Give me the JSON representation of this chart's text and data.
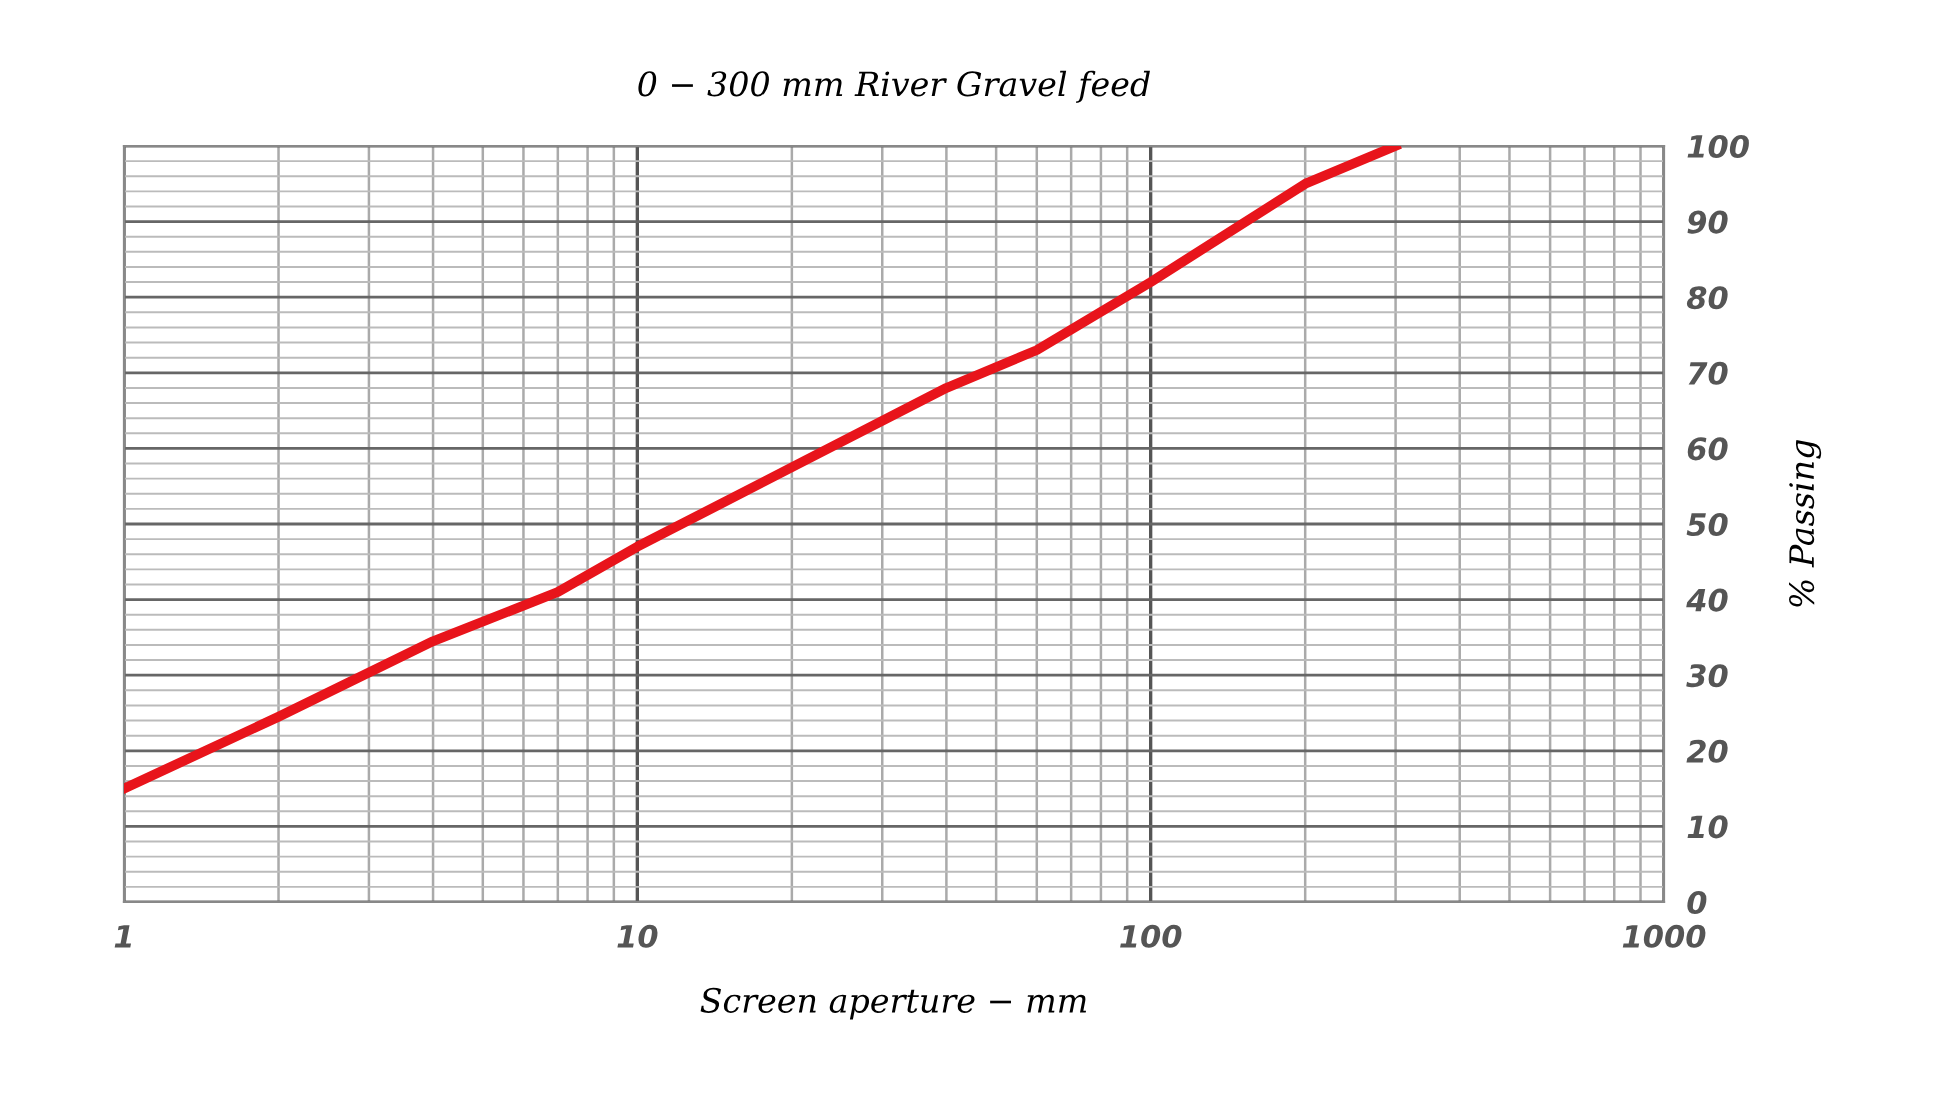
{
  "chart_data": {
    "type": "line",
    "title": "0 − 300 mm River Gravel feed",
    "xlabel": "Screen aperture − mm",
    "ylabel": "% Passing",
    "log": "x",
    "xlim": [
      1,
      1000
    ],
    "xticks": [
      1,
      10,
      100,
      1000
    ],
    "ylim": [
      0,
      100
    ],
    "yticks": [
      0,
      10,
      20,
      30,
      40,
      50,
      60,
      70,
      80,
      90,
      100
    ],
    "grid": true,
    "legend": false,
    "marker": "none",
    "line_style": "solid",
    "series": [
      {
        "color": "#e8141b",
        "x": [
          1,
          2,
          4,
          7,
          10,
          20,
          40,
          60,
          100,
          200,
          300
        ],
        "values": [
          15,
          24.5,
          34.5,
          41,
          47,
          57.5,
          68,
          73,
          82,
          95,
          100
        ]
      }
    ]
  }
}
